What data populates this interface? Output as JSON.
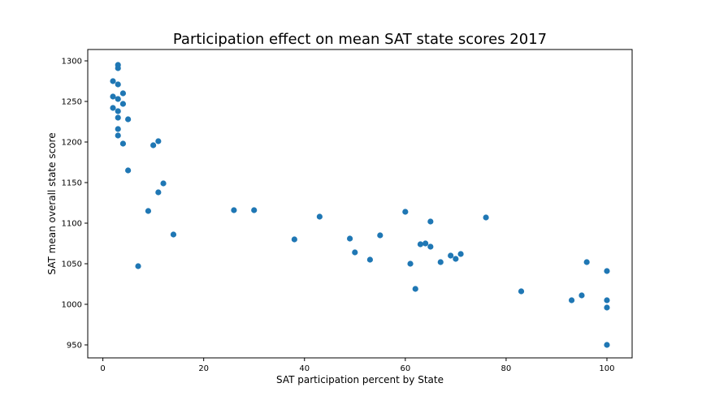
{
  "chart_data": {
    "type": "scatter",
    "title": "Participation effect on mean SAT state scores 2017",
    "xlabel": "SAT participation percent by State",
    "ylabel": "SAT mean overall state score",
    "xlim": [
      -3,
      105
    ],
    "ylim": [
      934,
      1314
    ],
    "xticks": [
      0,
      20,
      40,
      60,
      80,
      100
    ],
    "yticks": [
      950,
      1000,
      1050,
      1100,
      1150,
      1200,
      1250,
      1300
    ],
    "grid": false,
    "marker_color": "#1f77b4",
    "points": [
      {
        "x": 2,
        "y": 1275
      },
      {
        "x": 2,
        "y": 1256
      },
      {
        "x": 2,
        "y": 1242
      },
      {
        "x": 3,
        "y": 1295
      },
      {
        "x": 3,
        "y": 1291
      },
      {
        "x": 3,
        "y": 1271
      },
      {
        "x": 3,
        "y": 1253
      },
      {
        "x": 3,
        "y": 1238
      },
      {
        "x": 3,
        "y": 1230
      },
      {
        "x": 3,
        "y": 1216
      },
      {
        "x": 3,
        "y": 1208
      },
      {
        "x": 4,
        "y": 1260
      },
      {
        "x": 4,
        "y": 1247
      },
      {
        "x": 4,
        "y": 1198
      },
      {
        "x": 5,
        "y": 1228
      },
      {
        "x": 5,
        "y": 1165
      },
      {
        "x": 7,
        "y": 1047
      },
      {
        "x": 9,
        "y": 1115
      },
      {
        "x": 10,
        "y": 1196
      },
      {
        "x": 11,
        "y": 1201
      },
      {
        "x": 11,
        "y": 1138
      },
      {
        "x": 12,
        "y": 1149
      },
      {
        "x": 14,
        "y": 1086
      },
      {
        "x": 26,
        "y": 1116
      },
      {
        "x": 30,
        "y": 1116
      },
      {
        "x": 38,
        "y": 1080
      },
      {
        "x": 43,
        "y": 1108
      },
      {
        "x": 49,
        "y": 1081
      },
      {
        "x": 50,
        "y": 1064
      },
      {
        "x": 53,
        "y": 1055
      },
      {
        "x": 55,
        "y": 1085
      },
      {
        "x": 60,
        "y": 1114
      },
      {
        "x": 61,
        "y": 1050
      },
      {
        "x": 62,
        "y": 1019
      },
      {
        "x": 63,
        "y": 1074
      },
      {
        "x": 64,
        "y": 1075
      },
      {
        "x": 65,
        "y": 1102
      },
      {
        "x": 65,
        "y": 1071
      },
      {
        "x": 67,
        "y": 1052
      },
      {
        "x": 69,
        "y": 1060
      },
      {
        "x": 70,
        "y": 1056
      },
      {
        "x": 71,
        "y": 1062
      },
      {
        "x": 76,
        "y": 1107
      },
      {
        "x": 83,
        "y": 1016
      },
      {
        "x": 93,
        "y": 1005
      },
      {
        "x": 95,
        "y": 1011
      },
      {
        "x": 96,
        "y": 1052
      },
      {
        "x": 100,
        "y": 1041
      },
      {
        "x": 100,
        "y": 1005
      },
      {
        "x": 100,
        "y": 996
      },
      {
        "x": 100,
        "y": 950
      }
    ]
  }
}
